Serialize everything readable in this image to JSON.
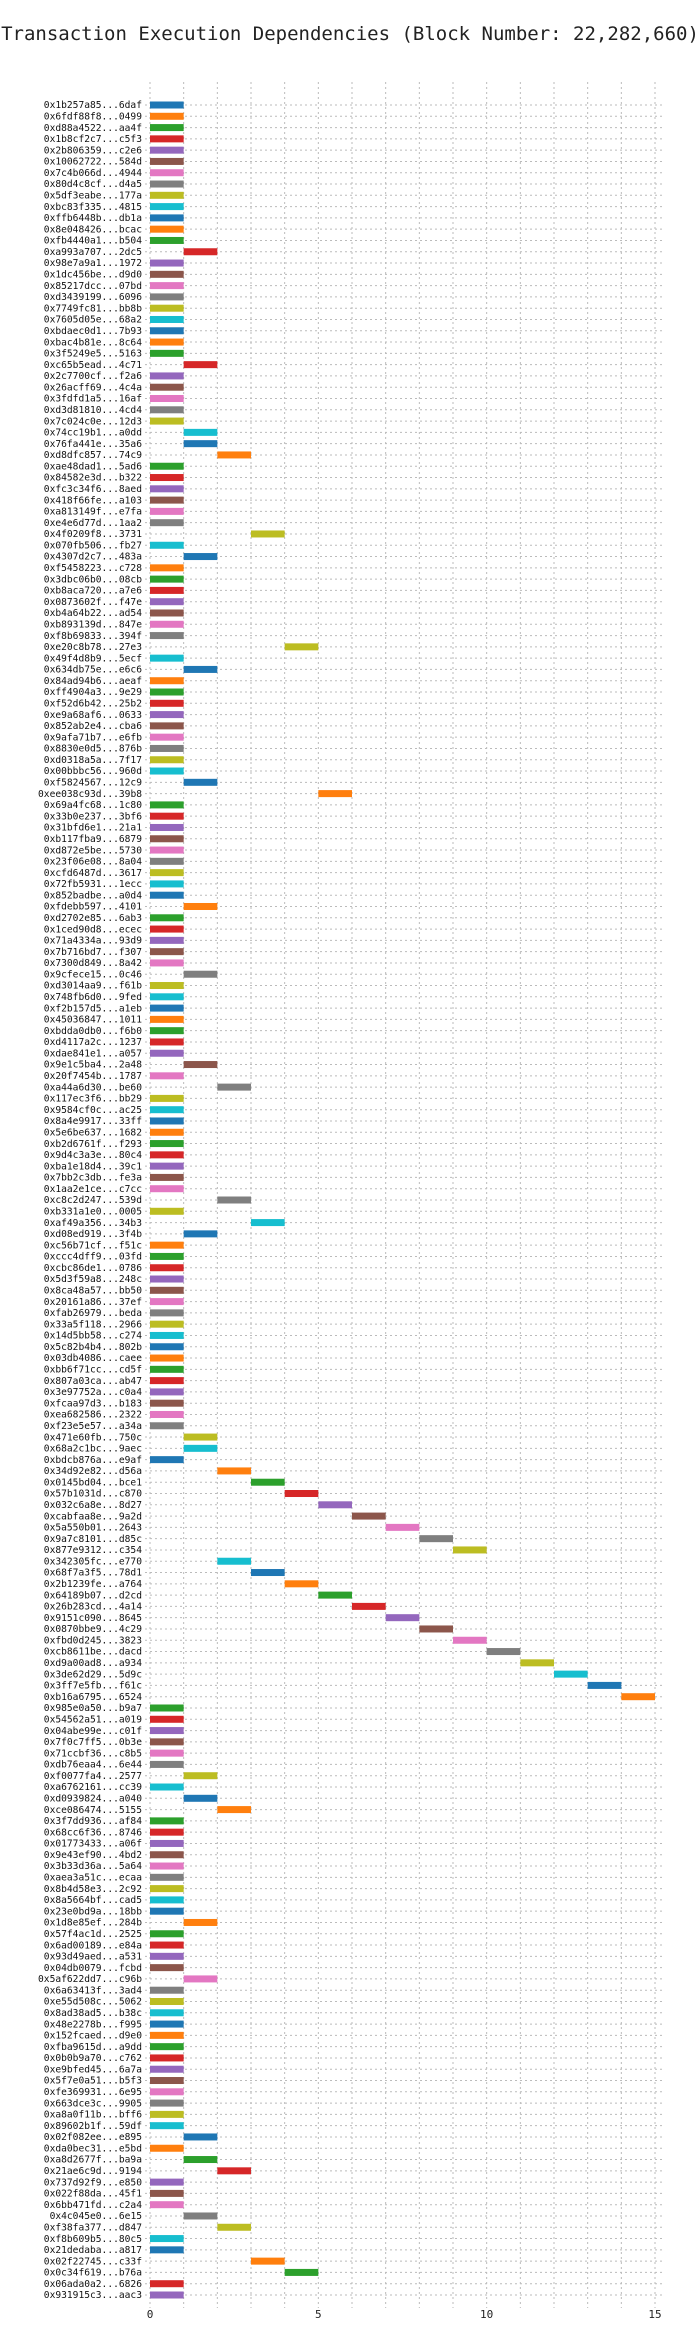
{
  "chart_data": {
    "type": "bar",
    "title": "Transaction Execution Dependencies (Block Number: 22,282,660)",
    "xlabel": "",
    "ylabel": "",
    "xlim": [
      0,
      15
    ],
    "xticks": [
      0,
      5,
      10,
      15
    ],
    "grid": true,
    "orientation": "horizontal-gantt",
    "colors": [
      "#1f77b4",
      "#ff7f0e",
      "#2ca02c",
      "#d62728",
      "#9467bd",
      "#8c564b",
      "#e377c2",
      "#7f7f7f",
      "#bcbd22",
      "#17becf"
    ],
    "rows": [
      {
        "label": "0x1b257a85...6daf",
        "start": 0
      },
      {
        "label": "0x6fdf88f8...0499",
        "start": 0
      },
      {
        "label": "0xd88a4522...aa4f",
        "start": 0
      },
      {
        "label": "0x1b8cf2c7...c5f3",
        "start": 0
      },
      {
        "label": "0x2b806359...c2e6",
        "start": 0
      },
      {
        "label": "0x10062722...584d",
        "start": 0
      },
      {
        "label": "0x7c4b066d...4944",
        "start": 0
      },
      {
        "label": "0x80d4c8cf...d4a5",
        "start": 0
      },
      {
        "label": "0x5df3eabe...177a",
        "start": 0
      },
      {
        "label": "0xbc83f335...4815",
        "start": 0
      },
      {
        "label": "0xffb6448b...db1a",
        "start": 0
      },
      {
        "label": "0x8e048426...bcac",
        "start": 0
      },
      {
        "label": "0xfb4440a1...b504",
        "start": 0
      },
      {
        "label": "0xa993a707...2dc5",
        "start": 1
      },
      {
        "label": "0x98e7a9a1...1972",
        "start": 0
      },
      {
        "label": "0x1dc456be...d9d0",
        "start": 0
      },
      {
        "label": "0x85217dcc...07bd",
        "start": 0
      },
      {
        "label": "0xd3439199...6096",
        "start": 0
      },
      {
        "label": "0x7749fc81...bb8b",
        "start": 0
      },
      {
        "label": "0x7605d05e...68a2",
        "start": 0
      },
      {
        "label": "0xbdaec0d1...7b93",
        "start": 0
      },
      {
        "label": "0xbac4b81e...8c64",
        "start": 0
      },
      {
        "label": "0x3f5249e5...5163",
        "start": 0
      },
      {
        "label": "0xc65b5ead...4c71",
        "start": 1
      },
      {
        "label": "0x2c7700cf...f2a6",
        "start": 0
      },
      {
        "label": "0x26acff69...4c4a",
        "start": 0
      },
      {
        "label": "0x3fdfd1a5...16af",
        "start": 0
      },
      {
        "label": "0xd3d81810...4cd4",
        "start": 0
      },
      {
        "label": "0x7c024c0e...12d3",
        "start": 0
      },
      {
        "label": "0x74cc19b1...a0dd",
        "start": 1
      },
      {
        "label": "0x76fa441e...35a6",
        "start": 1
      },
      {
        "label": "0xd8dfc857...74c9",
        "start": 2
      },
      {
        "label": "0xae48dad1...5ad6",
        "start": 0
      },
      {
        "label": "0x84582e3d...b322",
        "start": 0
      },
      {
        "label": "0xfc3c34f6...8aed",
        "start": 0
      },
      {
        "label": "0x418f66fe...a103",
        "start": 0
      },
      {
        "label": "0xa813149f...e7fa",
        "start": 0
      },
      {
        "label": "0xe4e6d77d...1aa2",
        "start": 0
      },
      {
        "label": "0x4f0209f8...3731",
        "start": 3
      },
      {
        "label": "0x070fb506...fb27",
        "start": 0
      },
      {
        "label": "0x4307d2c7...483a",
        "start": 1
      },
      {
        "label": "0xf5458223...c728",
        "start": 0
      },
      {
        "label": "0x3dbc06b0...08cb",
        "start": 0
      },
      {
        "label": "0xb8aca720...a7e6",
        "start": 0
      },
      {
        "label": "0x0873602f...f47e",
        "start": 0
      },
      {
        "label": "0xb4a64b22...ad54",
        "start": 0
      },
      {
        "label": "0xb893139d...847e",
        "start": 0
      },
      {
        "label": "0xf8b69833...394f",
        "start": 0
      },
      {
        "label": "0xe20c8b78...27e3",
        "start": 4
      },
      {
        "label": "0x49f4d8b9...5ecf",
        "start": 0
      },
      {
        "label": "0x634db75e...e6c6",
        "start": 1
      },
      {
        "label": "0x84ad94b6...aeaf",
        "start": 0
      },
      {
        "label": "0xff4904a3...9e29",
        "start": 0
      },
      {
        "label": "0xf52d6b42...25b2",
        "start": 0
      },
      {
        "label": "0xe9a68af6...0633",
        "start": 0
      },
      {
        "label": "0x852ab2e4...cba6",
        "start": 0
      },
      {
        "label": "0x9afa71b7...e6fb",
        "start": 0
      },
      {
        "label": "0x8830e0d5...876b",
        "start": 0
      },
      {
        "label": "0xd0318a5a...7f17",
        "start": 0
      },
      {
        "label": "0x00bbbc56...960d",
        "start": 0
      },
      {
        "label": "0xf5824567...12c9",
        "start": 1
      },
      {
        "label": "0xee038c93d...39b8",
        "start": 5
      },
      {
        "label": "0x69a4fc68...1c80",
        "start": 0
      },
      {
        "label": "0x33b0e237...3bf6",
        "start": 0
      },
      {
        "label": "0x31bfd6e1...21a1",
        "start": 0
      },
      {
        "label": "0xb117fba9...6879",
        "start": 0
      },
      {
        "label": "0xd872e5be...5730",
        "start": 0
      },
      {
        "label": "0x23f06e08...8a04",
        "start": 0
      },
      {
        "label": "0xcfd6487d...3617",
        "start": 0
      },
      {
        "label": "0x72fb5931...1ecc",
        "start": 0
      },
      {
        "label": "0x852badbe...a0d4",
        "start": 0
      },
      {
        "label": "0xfdebb597...4101",
        "start": 1
      },
      {
        "label": "0xd2702e85...6ab3",
        "start": 0
      },
      {
        "label": "0x1ced90d8...ecec",
        "start": 0
      },
      {
        "label": "0x71a4334a...93d9",
        "start": 0
      },
      {
        "label": "0x7b716bd7...f307",
        "start": 0
      },
      {
        "label": "0x7300d849...8a42",
        "start": 0
      },
      {
        "label": "0x9cfece15...0c46",
        "start": 1
      },
      {
        "label": "0xd3014aa9...f61b",
        "start": 0
      },
      {
        "label": "0x748fb6d0...9fed",
        "start": 0
      },
      {
        "label": "0xf2b157d5...a1eb",
        "start": 0
      },
      {
        "label": "0x45036847...1011",
        "start": 0
      },
      {
        "label": "0xbdda0db0...f6b0",
        "start": 0
      },
      {
        "label": "0xd4117a2c...1237",
        "start": 0
      },
      {
        "label": "0xdae841e1...a057",
        "start": 0
      },
      {
        "label": "0x9e1c5ba4...2a48",
        "start": 1
      },
      {
        "label": "0x20f7454b...1787",
        "start": 0
      },
      {
        "label": "0xa44a6d30...be60",
        "start": 2
      },
      {
        "label": "0x117ec3f6...bb29",
        "start": 0
      },
      {
        "label": "0x9584cf0c...ac25",
        "start": 0
      },
      {
        "label": "0x8a4e9917...33ff",
        "start": 0
      },
      {
        "label": "0x5e6be637...1682",
        "start": 0
      },
      {
        "label": "0xb2d6761f...f293",
        "start": 0
      },
      {
        "label": "0x9d4c3a3e...80c4",
        "start": 0
      },
      {
        "label": "0xba1e18d4...39c1",
        "start": 0
      },
      {
        "label": "0x7bb2c3db...fe3a",
        "start": 0
      },
      {
        "label": "0x1aa2e1ce...c7cc",
        "start": 0
      },
      {
        "label": "0xc8c2d247...539d",
        "start": 2
      },
      {
        "label": "0xb331a1e0...0005",
        "start": 0
      },
      {
        "label": "0xaf49a356...34b3",
        "start": 3
      },
      {
        "label": "0xd08ed919...3f4b",
        "start": 1
      },
      {
        "label": "0xc56b71cf...f51c",
        "start": 0
      },
      {
        "label": "0xccc4dff9...03fd",
        "start": 0
      },
      {
        "label": "0xcbc86de1...0786",
        "start": 0
      },
      {
        "label": "0x5d3f59a8...248c",
        "start": 0
      },
      {
        "label": "0x8ca48a57...bb50",
        "start": 0
      },
      {
        "label": "0x20161a86...37ef",
        "start": 0
      },
      {
        "label": "0xfab26979...beda",
        "start": 0
      },
      {
        "label": "0x33a5f118...2966",
        "start": 0
      },
      {
        "label": "0x14d5bb58...c274",
        "start": 0
      },
      {
        "label": "0x5c82b4b4...802b",
        "start": 0
      },
      {
        "label": "0x03db4086...caee",
        "start": 0
      },
      {
        "label": "0xbb6f71cc...cd5f",
        "start": 0
      },
      {
        "label": "0x807a03ca...ab47",
        "start": 0
      },
      {
        "label": "0x3e97752a...c0a4",
        "start": 0
      },
      {
        "label": "0xfcaa97d3...b183",
        "start": 0
      },
      {
        "label": "0xea682586...2322",
        "start": 0
      },
      {
        "label": "0xf23e5e57...a34a",
        "start": 0
      },
      {
        "label": "0x471e60fb...750c",
        "start": 1
      },
      {
        "label": "0x68a2c1bc...9aec",
        "start": 1
      },
      {
        "label": "0xbdcb876a...e9af",
        "start": 0
      },
      {
        "label": "0x34d92e82...d56a",
        "start": 2
      },
      {
        "label": "0x0145bd04...bce1",
        "start": 3
      },
      {
        "label": "0x57b1031d...c870",
        "start": 4
      },
      {
        "label": "0x032c6a8e...8d27",
        "start": 5
      },
      {
        "label": "0xcabfaa8e...9a2d",
        "start": 6
      },
      {
        "label": "0x5a550b01...2643",
        "start": 7
      },
      {
        "label": "0x9a7c8101...d85c",
        "start": 8
      },
      {
        "label": "0x877e9312...c354",
        "start": 9
      },
      {
        "label": "0x342305fc...e770",
        "start": 2
      },
      {
        "label": "0x68f7a3f5...78d1",
        "start": 3
      },
      {
        "label": "0x2b1239fe...a764",
        "start": 4
      },
      {
        "label": "0x64189b07...d2cd",
        "start": 5
      },
      {
        "label": "0x26b283cd...4a14",
        "start": 6
      },
      {
        "label": "0x9151c090...8645",
        "start": 7
      },
      {
        "label": "0x0870bbe9...4c29",
        "start": 8
      },
      {
        "label": "0xfbd0d245...3823",
        "start": 9
      },
      {
        "label": "0xcb8611be...dacd",
        "start": 10
      },
      {
        "label": "0xd9a00ad8...a934",
        "start": 11
      },
      {
        "label": "0x3de62d29...5d9c",
        "start": 12
      },
      {
        "label": "0x3ff7e5fb...f61c",
        "start": 13
      },
      {
        "label": "0xb16a6795...6524",
        "start": 14
      },
      {
        "label": "0x985e0a50...b9a7",
        "start": 0
      },
      {
        "label": "0x54562a51...a019",
        "start": 0
      },
      {
        "label": "0x04abe99e...c01f",
        "start": 0
      },
      {
        "label": "0x7f0c7ff5...0b3e",
        "start": 0
      },
      {
        "label": "0x71ccbf36...c8b5",
        "start": 0
      },
      {
        "label": "0xdb76eaa4...6e44",
        "start": 0
      },
      {
        "label": "0xf0077fa4...2577",
        "start": 1
      },
      {
        "label": "0xa6762161...cc39",
        "start": 0
      },
      {
        "label": "0xd0939824...a040",
        "start": 1
      },
      {
        "label": "0xce086474...5155",
        "start": 2
      },
      {
        "label": "0x3f7dd936...af84",
        "start": 0
      },
      {
        "label": "0x68cc6f36...8746",
        "start": 0
      },
      {
        "label": "0x01773433...a06f",
        "start": 0
      },
      {
        "label": "0x9e43ef90...4bd2",
        "start": 0
      },
      {
        "label": "0x3b33d36a...5a64",
        "start": 0
      },
      {
        "label": "0xaea3a51c...ecaa",
        "start": 0
      },
      {
        "label": "0x8b4d58e3...2c92",
        "start": 0
      },
      {
        "label": "0x8a5664bf...cad5",
        "start": 0
      },
      {
        "label": "0x23e0bd9a...18bb",
        "start": 0
      },
      {
        "label": "0x1d8e85ef...284b",
        "start": 1
      },
      {
        "label": "0x57f4ac1d...2525",
        "start": 0
      },
      {
        "label": "0x6ad00189...e84a",
        "start": 0
      },
      {
        "label": "0x93d49aed...a531",
        "start": 0
      },
      {
        "label": "0x04db0079...fcbd",
        "start": 0
      },
      {
        "label": "0x5af622dd7...c96b",
        "start": 1
      },
      {
        "label": "0x6a63413f...3ad4",
        "start": 0
      },
      {
        "label": "0xe55d508c...5062",
        "start": 0
      },
      {
        "label": "0x8ad38ad5...b38c",
        "start": 0
      },
      {
        "label": "0x48e2278b...f995",
        "start": 0
      },
      {
        "label": "0x152fcaed...d9e0",
        "start": 0
      },
      {
        "label": "0xfba9615d...a9dd",
        "start": 0
      },
      {
        "label": "0x0b0b9a70...c762",
        "start": 0
      },
      {
        "label": "0xe9bfed45...6a7a",
        "start": 0
      },
      {
        "label": "0x5f7e0a51...b5f3",
        "start": 0
      },
      {
        "label": "0xfe369931...6e95",
        "start": 0
      },
      {
        "label": "0x663dce3c...9905",
        "start": 0
      },
      {
        "label": "0xa8a0f11b...bff6",
        "start": 0
      },
      {
        "label": "0x89602b1f...59df",
        "start": 0
      },
      {
        "label": "0x02f082ee...e895",
        "start": 1
      },
      {
        "label": "0xda0bec31...e5bd",
        "start": 0
      },
      {
        "label": "0xa8d2677f...ba9a",
        "start": 1
      },
      {
        "label": "0x21ae6c9d...9194",
        "start": 2
      },
      {
        "label": "0x737d92f9...e850",
        "start": 0
      },
      {
        "label": "0x022f88da...45f1",
        "start": 0
      },
      {
        "label": "0x6bb471fd...c2a4",
        "start": 0
      },
      {
        "label": "0x4c045e0...6e15",
        "start": 1
      },
      {
        "label": "0xf38fa377...d847",
        "start": 2
      },
      {
        "label": "0xf8b609b5...80c5",
        "start": 0
      },
      {
        "label": "0x21dedaba...a817",
        "start": 0
      },
      {
        "label": "0x02f22745...c33f",
        "start": 3
      },
      {
        "label": "0x0c34f619...b76a",
        "start": 4
      },
      {
        "label": "0x06ada0a2...6826",
        "start": 0
      },
      {
        "label": "0x931915c3...aac3",
        "start": 0
      }
    ]
  }
}
